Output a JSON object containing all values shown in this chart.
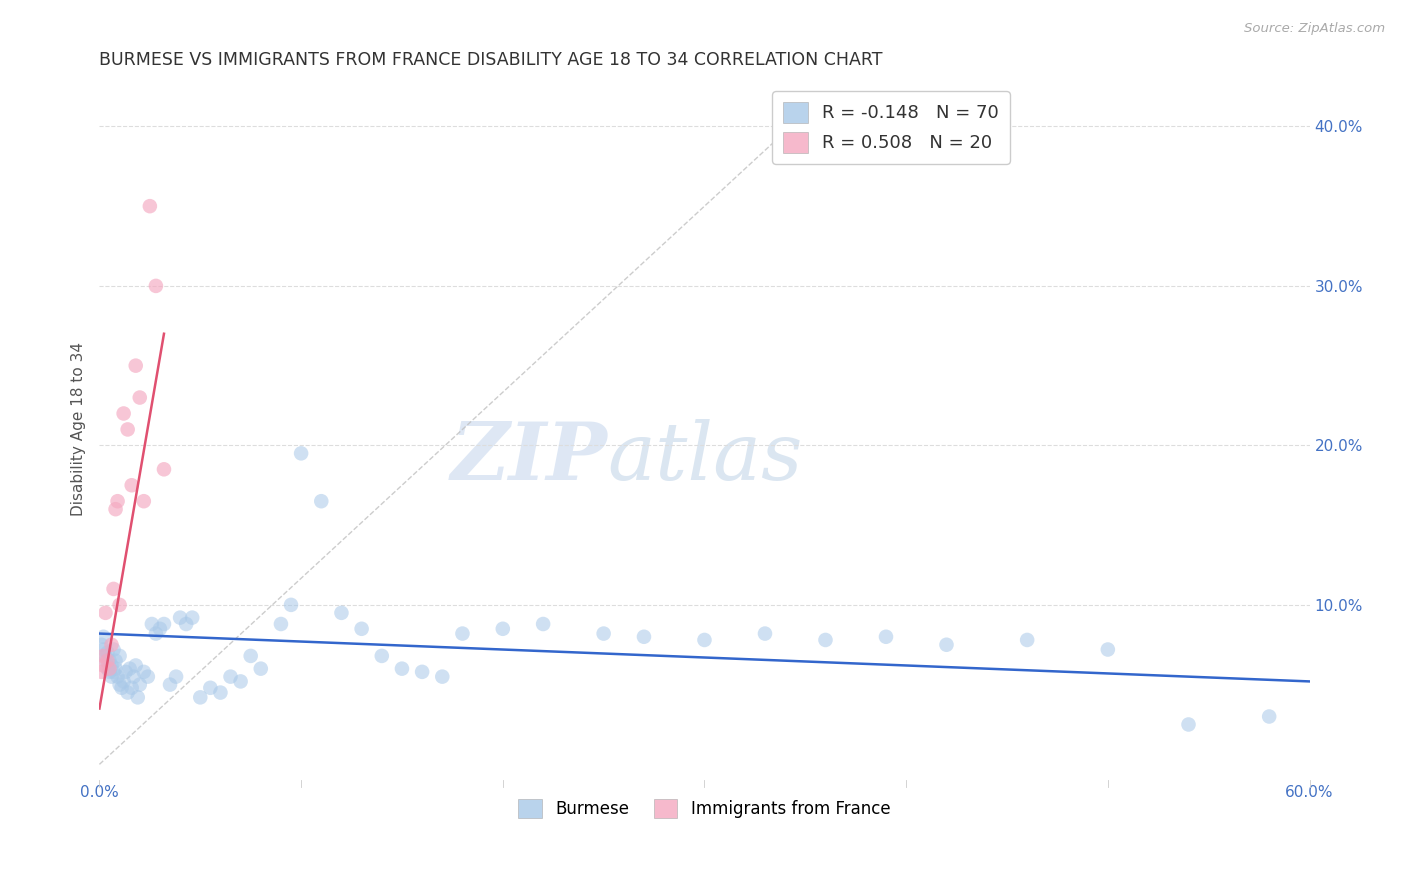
{
  "title": "BURMESE VS IMMIGRANTS FROM FRANCE DISABILITY AGE 18 TO 34 CORRELATION CHART",
  "source": "Source: ZipAtlas.com",
  "ylabel": "Disability Age 18 to 34",
  "xlim": [
    0.0,
    0.6
  ],
  "ylim": [
    -0.01,
    0.43
  ],
  "xticks": [
    0.0,
    0.1,
    0.2,
    0.3,
    0.4,
    0.5,
    0.6
  ],
  "yticks_right": [
    0.1,
    0.2,
    0.3,
    0.4
  ],
  "ytick_right_labels": [
    "10.0%",
    "20.0%",
    "30.0%",
    "40.0%"
  ],
  "blue_color": "#a8c8e8",
  "pink_color": "#f4a8c0",
  "blue_line_color": "#3366cc",
  "pink_line_color": "#e05070",
  "legend_blue_R": "R = -0.148",
  "legend_blue_N": "N = 70",
  "legend_pink_R": "R = 0.508",
  "legend_pink_N": "N = 20",
  "legend_label_blue": "Burmese",
  "legend_label_pink": "Immigrants from France",
  "watermark_zip": "ZIP",
  "watermark_atlas": "atlas",
  "blue_scatter_x": [
    0.001,
    0.002,
    0.002,
    0.003,
    0.003,
    0.004,
    0.004,
    0.005,
    0.005,
    0.006,
    0.006,
    0.007,
    0.007,
    0.008,
    0.008,
    0.009,
    0.01,
    0.01,
    0.011,
    0.012,
    0.013,
    0.014,
    0.015,
    0.016,
    0.017,
    0.018,
    0.019,
    0.02,
    0.022,
    0.024,
    0.026,
    0.028,
    0.03,
    0.032,
    0.035,
    0.038,
    0.04,
    0.043,
    0.046,
    0.05,
    0.055,
    0.06,
    0.065,
    0.07,
    0.075,
    0.08,
    0.09,
    0.095,
    0.1,
    0.11,
    0.12,
    0.13,
    0.14,
    0.15,
    0.16,
    0.17,
    0.18,
    0.2,
    0.22,
    0.25,
    0.27,
    0.3,
    0.33,
    0.36,
    0.39,
    0.42,
    0.46,
    0.5,
    0.54,
    0.58
  ],
  "blue_scatter_y": [
    0.075,
    0.08,
    0.072,
    0.068,
    0.065,
    0.06,
    0.07,
    0.058,
    0.065,
    0.062,
    0.055,
    0.058,
    0.072,
    0.06,
    0.065,
    0.055,
    0.068,
    0.05,
    0.048,
    0.052,
    0.058,
    0.045,
    0.06,
    0.048,
    0.055,
    0.062,
    0.042,
    0.05,
    0.058,
    0.055,
    0.088,
    0.082,
    0.085,
    0.088,
    0.05,
    0.055,
    0.092,
    0.088,
    0.092,
    0.042,
    0.048,
    0.045,
    0.055,
    0.052,
    0.068,
    0.06,
    0.088,
    0.1,
    0.195,
    0.165,
    0.095,
    0.085,
    0.068,
    0.06,
    0.058,
    0.055,
    0.082,
    0.085,
    0.088,
    0.082,
    0.08,
    0.078,
    0.082,
    0.078,
    0.08,
    0.075,
    0.078,
    0.072,
    0.025,
    0.03
  ],
  "pink_scatter_x": [
    0.001,
    0.002,
    0.002,
    0.003,
    0.004,
    0.005,
    0.006,
    0.007,
    0.008,
    0.009,
    0.01,
    0.012,
    0.014,
    0.016,
    0.018,
    0.02,
    0.022,
    0.025,
    0.028,
    0.032
  ],
  "pink_scatter_y": [
    0.058,
    0.062,
    0.068,
    0.095,
    0.065,
    0.06,
    0.075,
    0.11,
    0.16,
    0.165,
    0.1,
    0.22,
    0.21,
    0.175,
    0.25,
    0.23,
    0.165,
    0.35,
    0.3,
    0.185
  ],
  "blue_trend_x": [
    0.0,
    0.6
  ],
  "blue_trend_y": [
    0.082,
    0.052
  ],
  "pink_trend_x": [
    0.0,
    0.032
  ],
  "pink_trend_y": [
    0.035,
    0.27
  ],
  "ref_line_x": [
    0.0,
    0.36
  ],
  "ref_line_y": [
    0.0,
    0.42
  ],
  "background_color": "#ffffff",
  "title_color": "#333333",
  "axis_label_color": "#555555",
  "right_tick_color": "#4472c4",
  "grid_color": "#dddddd"
}
